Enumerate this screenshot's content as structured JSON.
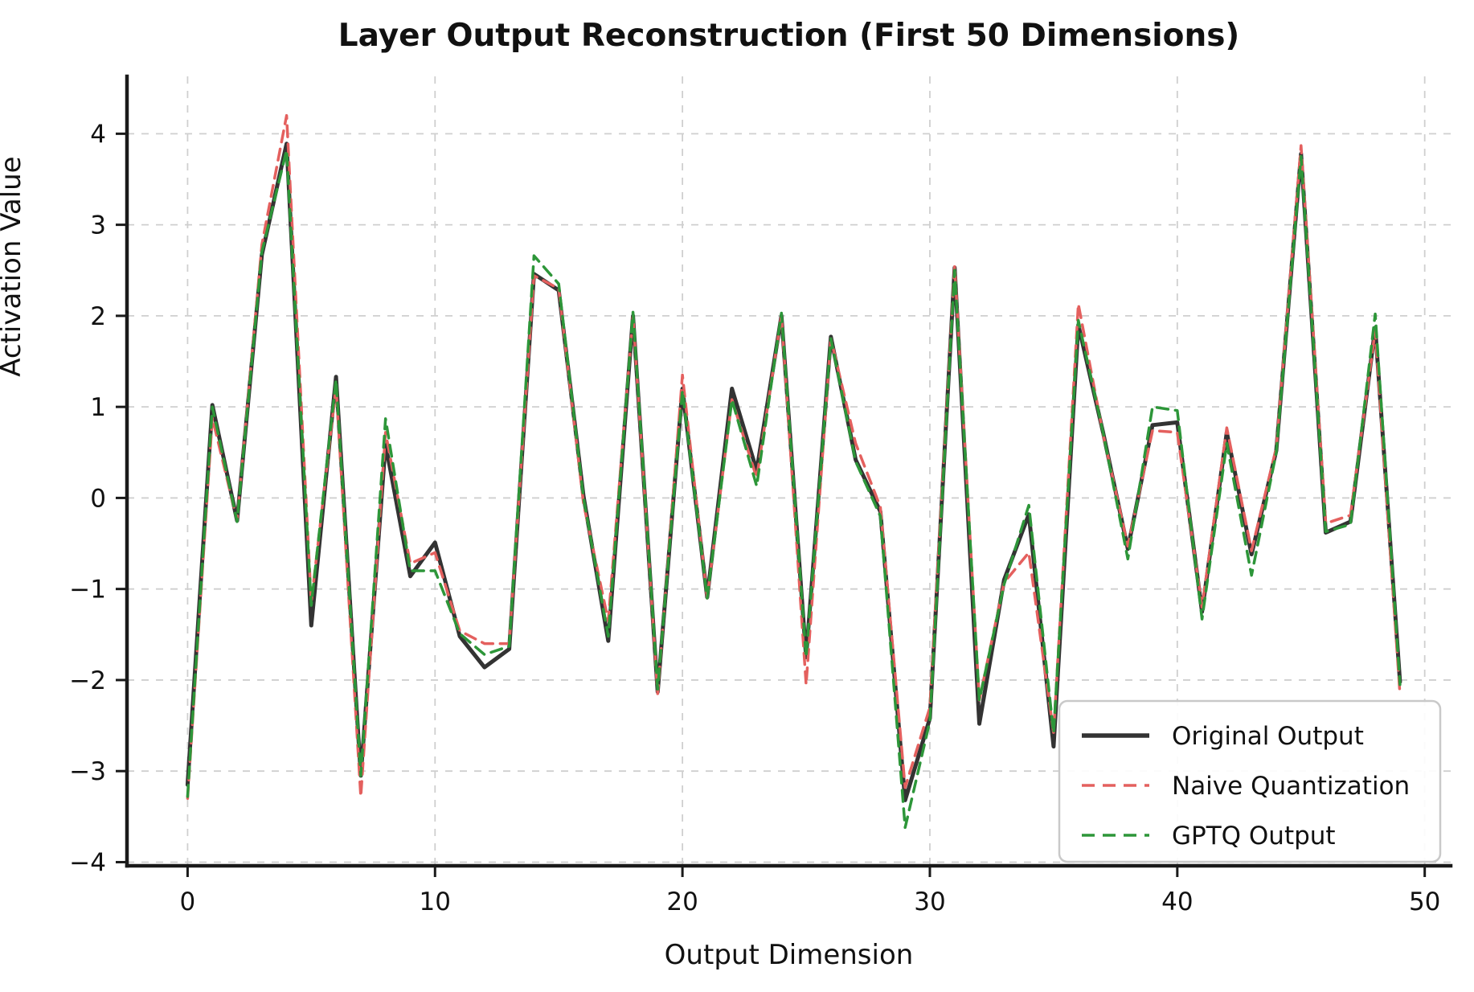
{
  "title": "Layer Output Reconstruction (First 50 Dimensions)",
  "chart_data": {
    "type": "line",
    "title": "Layer Output Reconstruction (First 50 Dimensions)",
    "xlabel": "Output Dimension",
    "ylabel": "Activation Value",
    "xlim": [
      -2.45,
      51.05
    ],
    "ylim": [
      -4.04,
      4.63
    ],
    "xticks": [
      0,
      10,
      20,
      30,
      40,
      50
    ],
    "yticks": [
      -4,
      -3,
      -2,
      -1,
      0,
      1,
      2,
      3,
      4
    ],
    "grid": true,
    "grid_color": "#cfcfcf",
    "legend_position": "lower right",
    "x": [
      0,
      1,
      2,
      3,
      4,
      5,
      6,
      7,
      8,
      9,
      10,
      11,
      12,
      13,
      14,
      15,
      16,
      17,
      18,
      19,
      20,
      21,
      22,
      23,
      24,
      25,
      26,
      27,
      28,
      29,
      30,
      31,
      32,
      33,
      34,
      35,
      36,
      37,
      38,
      39,
      40,
      41,
      42,
      43,
      44,
      45,
      46,
      47,
      48,
      49
    ],
    "series": [
      {
        "name": "Original Output",
        "color": "#333333",
        "style": "solid",
        "line_width": 5,
        "values": [
          -3.15,
          1.02,
          -0.25,
          2.67,
          3.89,
          -1.4,
          1.33,
          -3.05,
          0.59,
          -0.86,
          -0.49,
          -1.52,
          -1.86,
          -1.66,
          2.46,
          2.28,
          0.02,
          -1.57,
          2.0,
          -2.13,
          1.2,
          -1.09,
          1.2,
          0.3,
          2.0,
          -1.75,
          1.77,
          0.42,
          -0.15,
          -3.32,
          -2.42,
          2.53,
          -2.48,
          -0.9,
          -0.18,
          -2.73,
          1.9,
          0.72,
          -0.56,
          0.8,
          0.83,
          -1.25,
          0.72,
          -0.62,
          0.52,
          3.78,
          -0.38,
          -0.26,
          1.87,
          -2.02
        ]
      },
      {
        "name": "Naive Quantization",
        "color": "#e4605e",
        "style": "dashed",
        "line_width": 3.5,
        "values": [
          -3.3,
          0.88,
          -0.25,
          2.78,
          4.2,
          -1.15,
          1.22,
          -3.28,
          0.72,
          -0.72,
          -0.6,
          -1.46,
          -1.6,
          -1.6,
          2.44,
          2.3,
          -0.06,
          -1.35,
          2.0,
          -2.15,
          1.35,
          -1.1,
          1.08,
          0.22,
          2.0,
          -2.05,
          1.75,
          0.6,
          -0.1,
          -3.18,
          -2.3,
          2.55,
          -2.22,
          -0.93,
          -0.6,
          -2.58,
          2.13,
          0.7,
          -0.53,
          0.74,
          0.72,
          -1.2,
          0.77,
          -0.58,
          0.55,
          3.87,
          -0.28,
          -0.19,
          1.84,
          -2.16
        ]
      },
      {
        "name": "GPTQ Output",
        "color": "#2d9639",
        "style": "dashed",
        "line_width": 3.5,
        "values": [
          -3.28,
          1.0,
          -0.26,
          2.7,
          3.82,
          -1.18,
          1.3,
          -3.05,
          0.87,
          -0.8,
          -0.8,
          -1.49,
          -1.72,
          -1.63,
          2.66,
          2.35,
          0.0,
          -1.52,
          2.04,
          -2.1,
          1.18,
          -1.1,
          1.08,
          0.13,
          2.03,
          -1.75,
          1.75,
          0.4,
          -0.2,
          -3.62,
          -2.45,
          2.5,
          -2.22,
          -0.95,
          -0.08,
          -2.58,
          1.95,
          0.72,
          -0.67,
          1.0,
          0.96,
          -1.33,
          0.6,
          -0.85,
          0.5,
          3.75,
          -0.37,
          -0.29,
          2.02,
          -2.05
        ]
      }
    ]
  }
}
